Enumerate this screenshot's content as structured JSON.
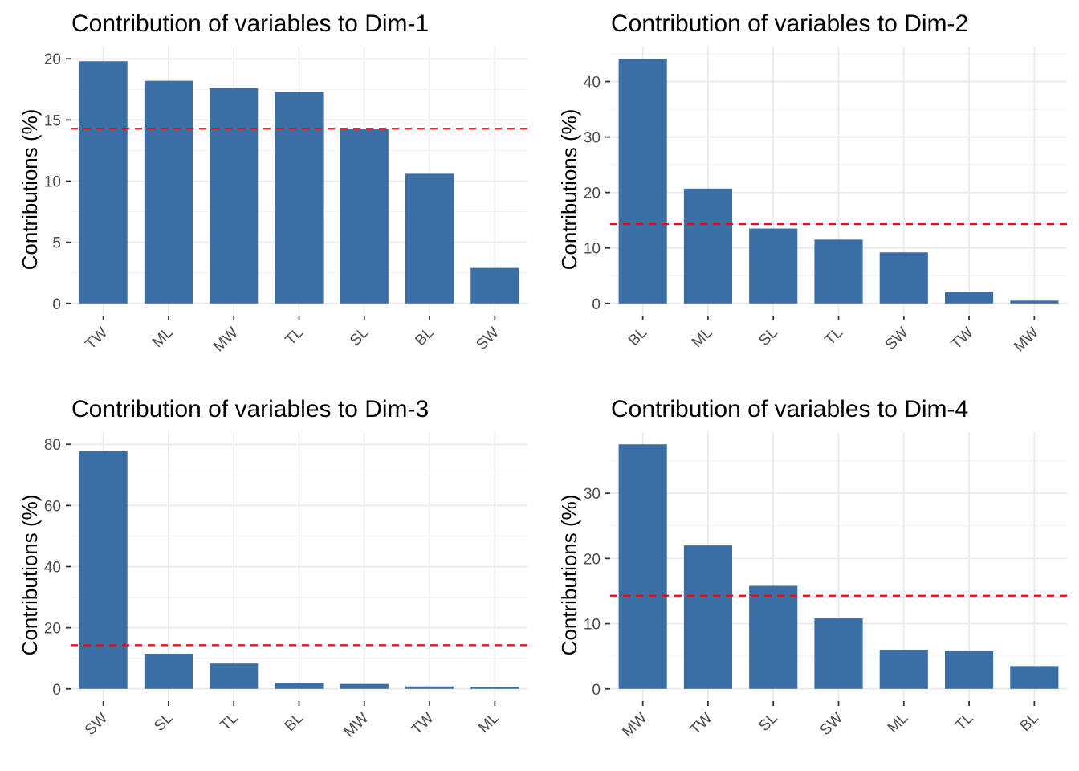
{
  "chart_data": [
    {
      "type": "bar",
      "title": "Contribution of variables to Dim-1",
      "ylabel": "Contributions (%)",
      "xlabel": "",
      "categories": [
        "TW",
        "ML",
        "MW",
        "TL",
        "SL",
        "BL",
        "SW"
      ],
      "values": [
        19.8,
        18.2,
        17.6,
        17.3,
        14.3,
        10.6,
        2.9
      ],
      "yticks": [
        0,
        5,
        10,
        15,
        20
      ],
      "ylim": [
        0,
        20
      ],
      "reference_line": 14.29,
      "bar_color": "#3A6EA5",
      "reference_color": "#FF0000",
      "grid": true
    },
    {
      "type": "bar",
      "title": "Contribution of variables to Dim-2",
      "ylabel": "Contributions (%)",
      "xlabel": "",
      "categories": [
        "BL",
        "ML",
        "SL",
        "TL",
        "SW",
        "TW",
        "MW"
      ],
      "values": [
        44.1,
        20.7,
        13.5,
        11.5,
        9.2,
        2.1,
        0.5
      ],
      "yticks": [
        0,
        10,
        20,
        30,
        40
      ],
      "ylim": [
        0,
        44.1
      ],
      "reference_line": 14.29,
      "bar_color": "#3A6EA5",
      "reference_color": "#FF0000",
      "grid": true
    },
    {
      "type": "bar",
      "title": "Contribution of variables to Dim-3",
      "ylabel": "Contributions (%)",
      "xlabel": "",
      "categories": [
        "SW",
        "SL",
        "TL",
        "BL",
        "MW",
        "TW",
        "ML"
      ],
      "values": [
        77.7,
        11.5,
        8.3,
        2.0,
        1.6,
        0.8,
        0.6
      ],
      "yticks": [
        0,
        20,
        40,
        60,
        80
      ],
      "ylim": [
        0,
        80
      ],
      "reference_line": 14.29,
      "bar_color": "#3A6EA5",
      "reference_color": "#FF0000",
      "grid": true
    },
    {
      "type": "bar",
      "title": "Contribution of variables to Dim-4",
      "ylabel": "Contributions (%)",
      "xlabel": "",
      "categories": [
        "MW",
        "TW",
        "SL",
        "SW",
        "ML",
        "TL",
        "BL"
      ],
      "values": [
        37.5,
        22.0,
        15.8,
        10.8,
        6.0,
        5.8,
        3.5
      ],
      "yticks": [
        0,
        10,
        20,
        30
      ],
      "ylim": [
        0,
        37.5
      ],
      "reference_line": 14.29,
      "bar_color": "#3A6EA5",
      "reference_color": "#FF0000",
      "grid": true
    }
  ]
}
